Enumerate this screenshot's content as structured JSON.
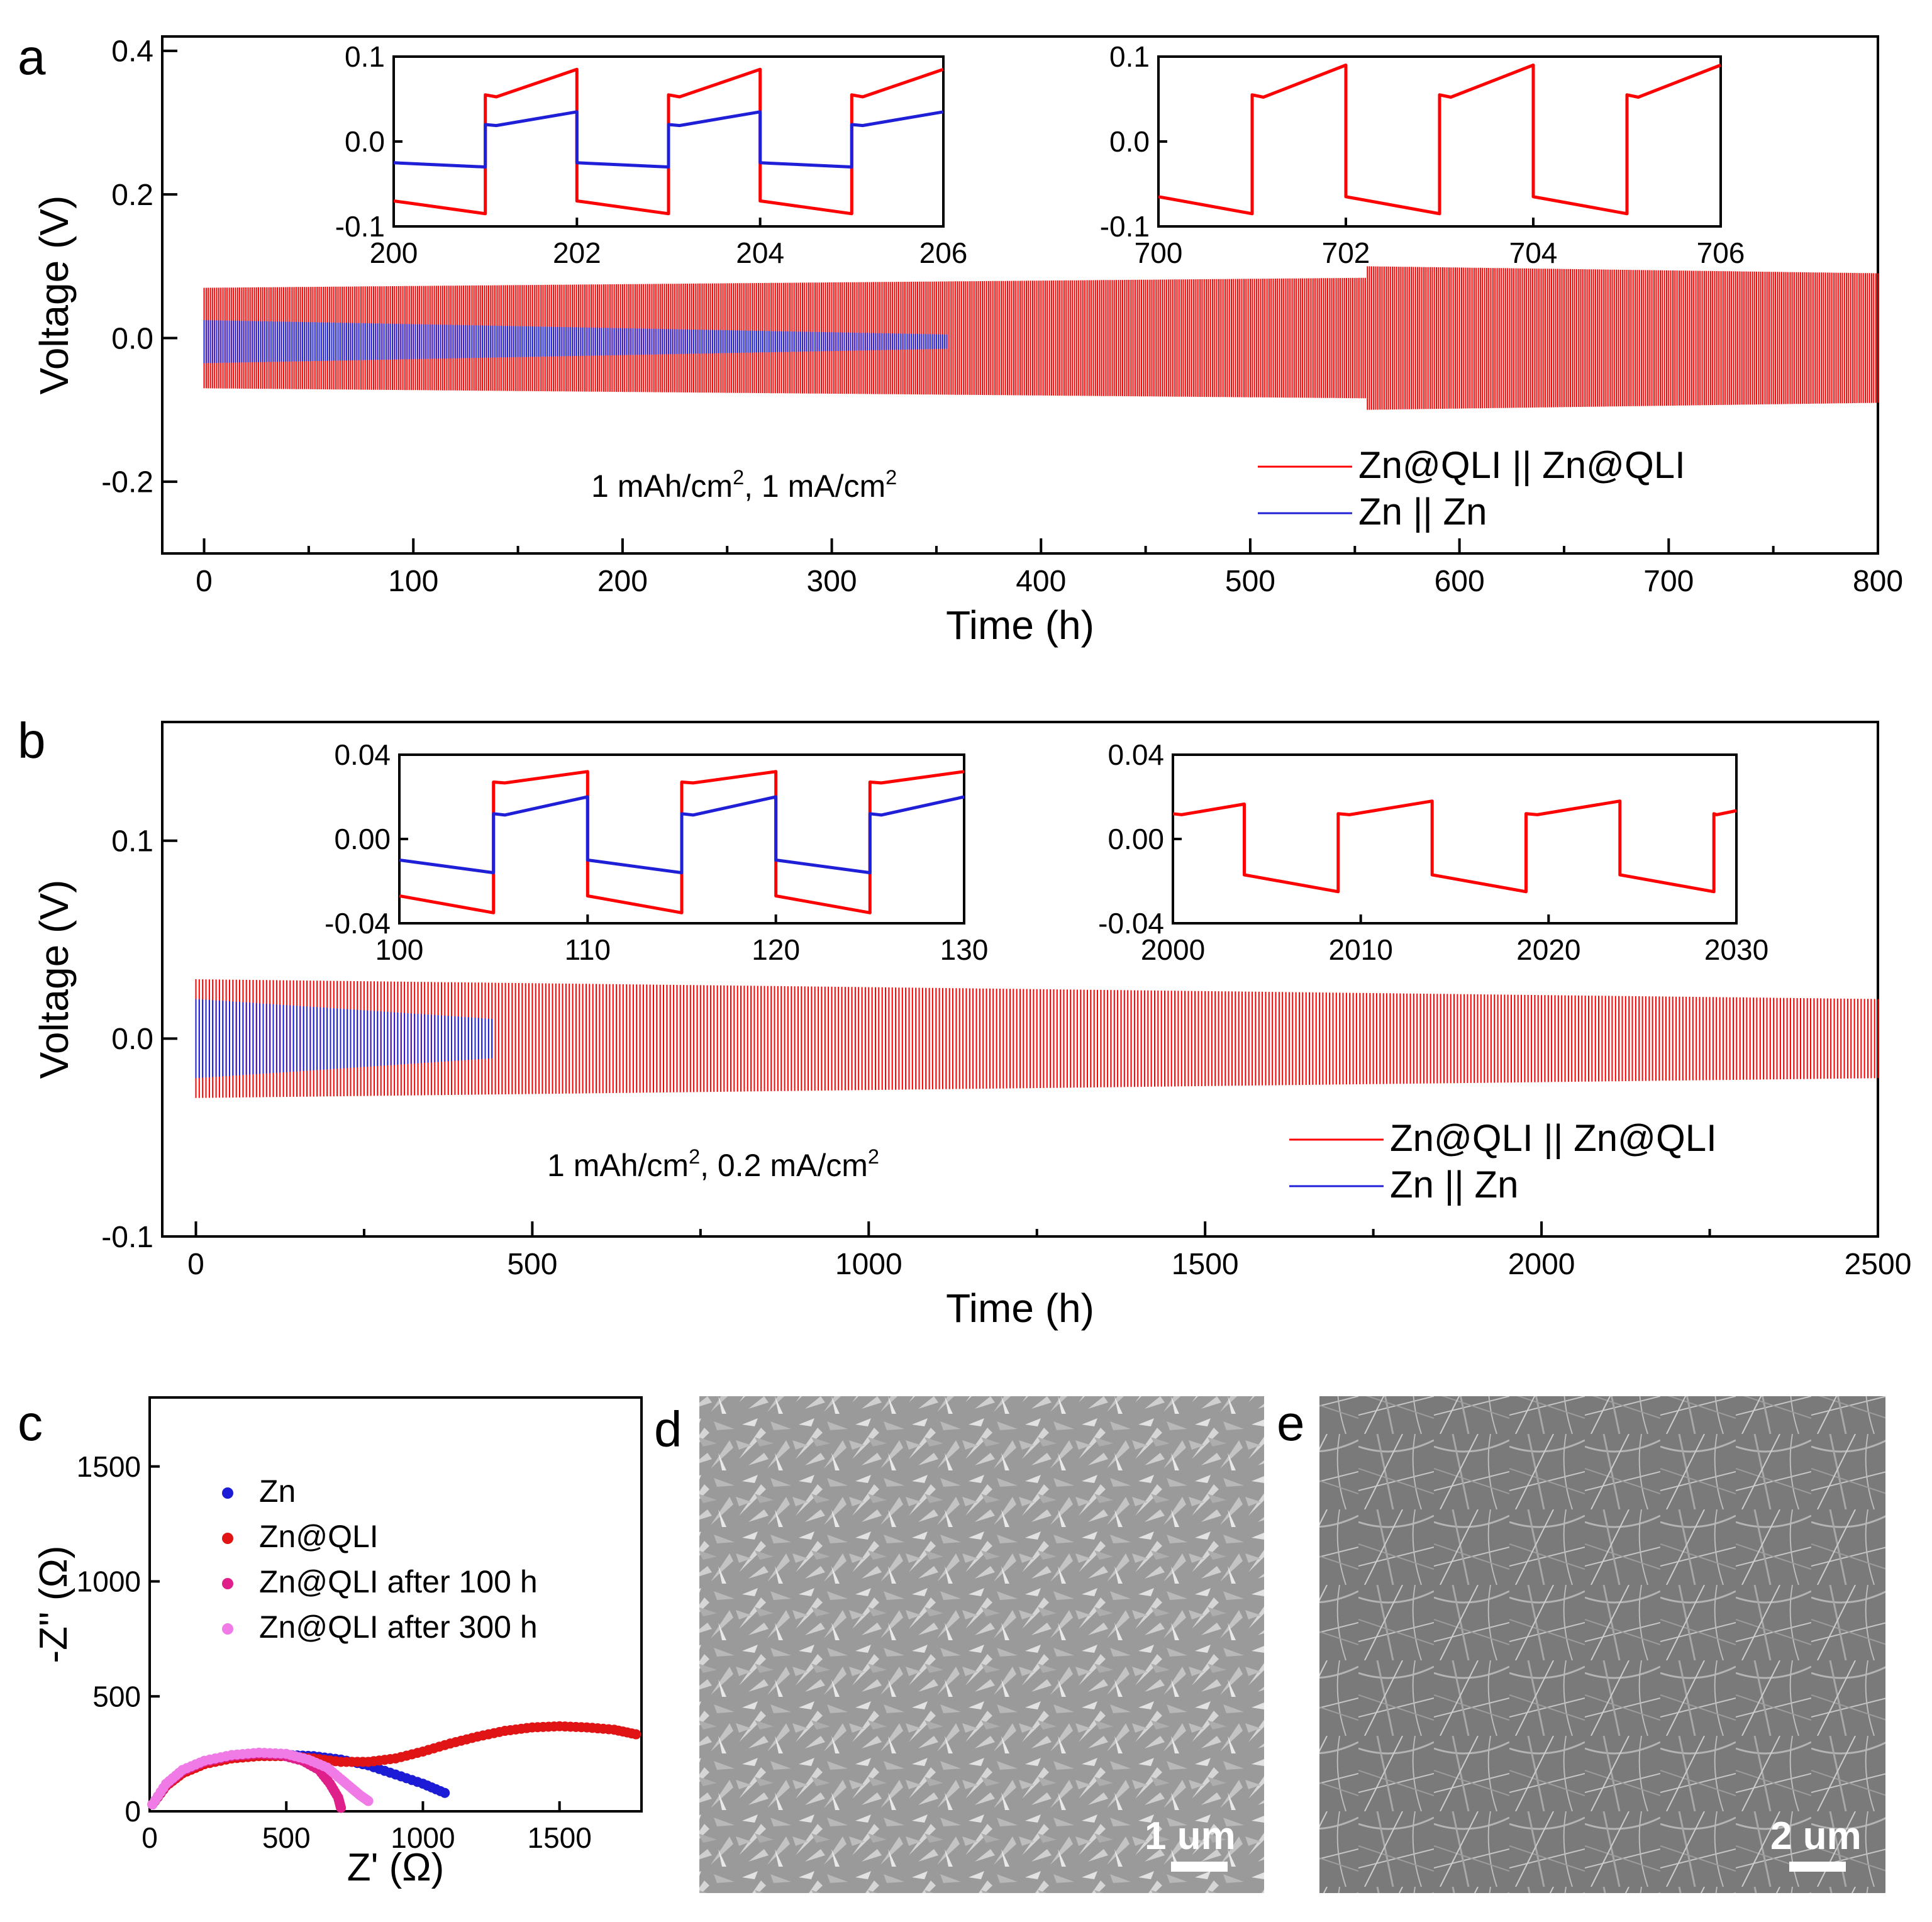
{
  "chart_data": [
    {
      "id": "a",
      "panel_label": "a",
      "type": "line",
      "xlabel": "Time (h)",
      "ylabel": "Voltage (V)",
      "xlim": [
        -20,
        800
      ],
      "ylim": [
        -0.3,
        0.42
      ],
      "xticks": [
        0,
        100,
        200,
        300,
        400,
        500,
        600,
        700,
        800
      ],
      "yticks": [
        -0.2,
        0.0,
        0.2,
        0.4
      ],
      "ytick_labels": [
        "-0.2",
        "0.0",
        "0.2",
        "0.4"
      ],
      "annotation_main": "1 mAh/cm",
      "annotation_sup": "2",
      "annotation_rest": ", 1 mA/cm",
      "annotation_sup2": "2",
      "series": [
        {
          "name": "Zn@QLI || Zn@QLI",
          "color": "#ff0000",
          "x_end": 800,
          "period": 2,
          "amp_start": 0.07,
          "amp_end": 0.09,
          "amp_mid_bump": [
            555,
            0.1
          ],
          "offset": 0.0
        },
        {
          "name": "Zn || Zn",
          "color": "#1f1fd8",
          "x_end": 355,
          "period": 2,
          "amp_start": 0.03,
          "amp_end": 0.01,
          "offset": -0.005
        }
      ],
      "insets": [
        {
          "xlim": [
            200,
            206
          ],
          "ylim": [
            -0.1,
            0.1
          ],
          "xticks": [
            200,
            202,
            204,
            206
          ],
          "yticks": [
            -0.1,
            0.0,
            0.1
          ],
          "ytick_labels": [
            "-0.1",
            "0.0",
            "0.1"
          ],
          "series": [
            {
              "name": "Zn@QLI || Zn@QLI",
              "color": "#ff0000",
              "period": 2,
              "start_charge_low": true,
              "low": [
                -0.07,
                -0.085
              ],
              "high": [
                0.055,
                0.085
              ]
            },
            {
              "name": "Zn || Zn",
              "color": "#1f1fd8",
              "period": 2,
              "start_charge_low": true,
              "low": [
                -0.025,
                -0.03
              ],
              "high": [
                0.02,
                0.035
              ]
            }
          ]
        },
        {
          "xlim": [
            700,
            706
          ],
          "ylim": [
            -0.1,
            0.1
          ],
          "xticks": [
            700,
            702,
            704,
            706
          ],
          "yticks": [
            -0.1,
            0.0,
            0.1
          ],
          "ytick_labels": [
            "-0.1",
            "0.0",
            "0.1"
          ],
          "series": [
            {
              "name": "Zn@QLI || Zn@QLI",
              "color": "#ff0000",
              "period": 2,
              "start_charge_low": true,
              "low": [
                -0.065,
                -0.085
              ],
              "high": [
                0.055,
                0.09
              ]
            }
          ]
        }
      ]
    },
    {
      "id": "b",
      "panel_label": "b",
      "type": "line",
      "xlabel": "Time (h)",
      "ylabel": "Voltage (V)",
      "xlim": [
        -50,
        2500
      ],
      "ylim": [
        -0.1,
        0.16
      ],
      "xticks": [
        0,
        500,
        1000,
        1500,
        2000,
        2500
      ],
      "yticks": [
        -0.1,
        0.0,
        0.1
      ],
      "ytick_labels": [
        "-0.1",
        "0.0",
        "0.1"
      ],
      "annotation_main": "1 mAh/cm",
      "annotation_sup": "2",
      "annotation_rest": ", 0.2 mA/cm",
      "annotation_sup2": "2",
      "series": [
        {
          "name": "Zn@QLI || Zn@QLI",
          "color": "#ff0000",
          "x_end": 2500,
          "period": 10,
          "amp_start": 0.03,
          "amp_end": 0.02,
          "offset": 0.0
        },
        {
          "name": "Zn || Zn",
          "color": "#1f1fd8",
          "x_end": 440,
          "period": 10,
          "amp_start": 0.02,
          "amp_end": 0.01,
          "offset": 0.0
        }
      ],
      "insets": [
        {
          "xlim": [
            100,
            130
          ],
          "ylim": [
            -0.04,
            0.04
          ],
          "xticks": [
            100,
            110,
            120,
            130
          ],
          "yticks": [
            -0.04,
            0.0,
            0.04
          ],
          "ytick_labels": [
            "-0.04",
            "0.00",
            "0.04"
          ],
          "series": [
            {
              "name": "Zn@QLI || Zn@QLI",
              "color": "#ff0000",
              "period": 10,
              "start_charge_low": true,
              "low": [
                -0.027,
                -0.035
              ],
              "high": [
                0.027,
                0.032
              ]
            },
            {
              "name": "Zn || Zn",
              "color": "#1f1fd8",
              "period": 10,
              "start_charge_low": true,
              "low": [
                -0.01,
                -0.016
              ],
              "high": [
                0.012,
                0.02
              ]
            }
          ]
        },
        {
          "xlim": [
            2000,
            2030
          ],
          "ylim": [
            -0.04,
            0.04
          ],
          "xticks": [
            2000,
            2010,
            2020,
            2030
          ],
          "yticks": [
            -0.04,
            0.0,
            0.04
          ],
          "ytick_labels": [
            "-0.04",
            "0.00",
            "0.04"
          ],
          "series": [
            {
              "name": "Zn@QLI || Zn@QLI",
              "color": "#ff0000",
              "period": 10,
              "phase": 3.8,
              "start_charge_low": false,
              "low": [
                -0.017,
                -0.025
              ],
              "high": [
                0.012,
                0.018
              ]
            }
          ]
        }
      ]
    },
    {
      "id": "c",
      "panel_label": "c",
      "type": "scatter",
      "xlabel": "Z' (Ω)",
      "ylabel": "-Z'' (Ω)",
      "xlim": [
        0,
        1800
      ],
      "ylim": [
        0,
        1800
      ],
      "xticks": [
        0,
        500,
        1000,
        1500
      ],
      "yticks": [
        0,
        500,
        1000,
        1500
      ],
      "series": [
        {
          "name": "Zn",
          "color": "#1c1cd6",
          "x": [
            10,
            60,
            120,
            200,
            300,
            400,
            500,
            600,
            700,
            800,
            900,
            1000,
            1080
          ],
          "y": [
            30,
            110,
            170,
            210,
            235,
            245,
            245,
            240,
            225,
            200,
            160,
            120,
            80
          ]
        },
        {
          "name": "Zn@QLI",
          "color": "#e01414",
          "x": [
            10,
            60,
            120,
            200,
            300,
            400,
            500,
            600,
            700,
            800,
            900,
            1000,
            1100,
            1200,
            1300,
            1400,
            1500,
            1600,
            1700,
            1780
          ],
          "y": [
            30,
            110,
            165,
            205,
            230,
            240,
            240,
            230,
            215,
            215,
            230,
            260,
            295,
            325,
            350,
            365,
            370,
            365,
            355,
            335
          ]
        },
        {
          "name": "Zn@QLI after 100 h",
          "color": "#e0208a",
          "x": [
            10,
            60,
            120,
            200,
            300,
            400,
            480,
            560,
            620,
            660,
            690,
            700
          ],
          "y": [
            30,
            115,
            175,
            215,
            240,
            250,
            245,
            220,
            180,
            120,
            60,
            15
          ]
        },
        {
          "name": "Zn@QLI after 300 h",
          "color": "#f07ae6",
          "x": [
            10,
            60,
            120,
            200,
            300,
            400,
            500,
            580,
            650,
            700,
            740,
            770,
            800
          ],
          "y": [
            30,
            120,
            180,
            220,
            245,
            255,
            250,
            225,
            190,
            140,
            100,
            70,
            45
          ]
        }
      ]
    }
  ],
  "images": {
    "d": {
      "panel_label": "d",
      "scale_label": "1 um"
    },
    "e": {
      "panel_label": "e",
      "scale_label": "2 um"
    }
  }
}
